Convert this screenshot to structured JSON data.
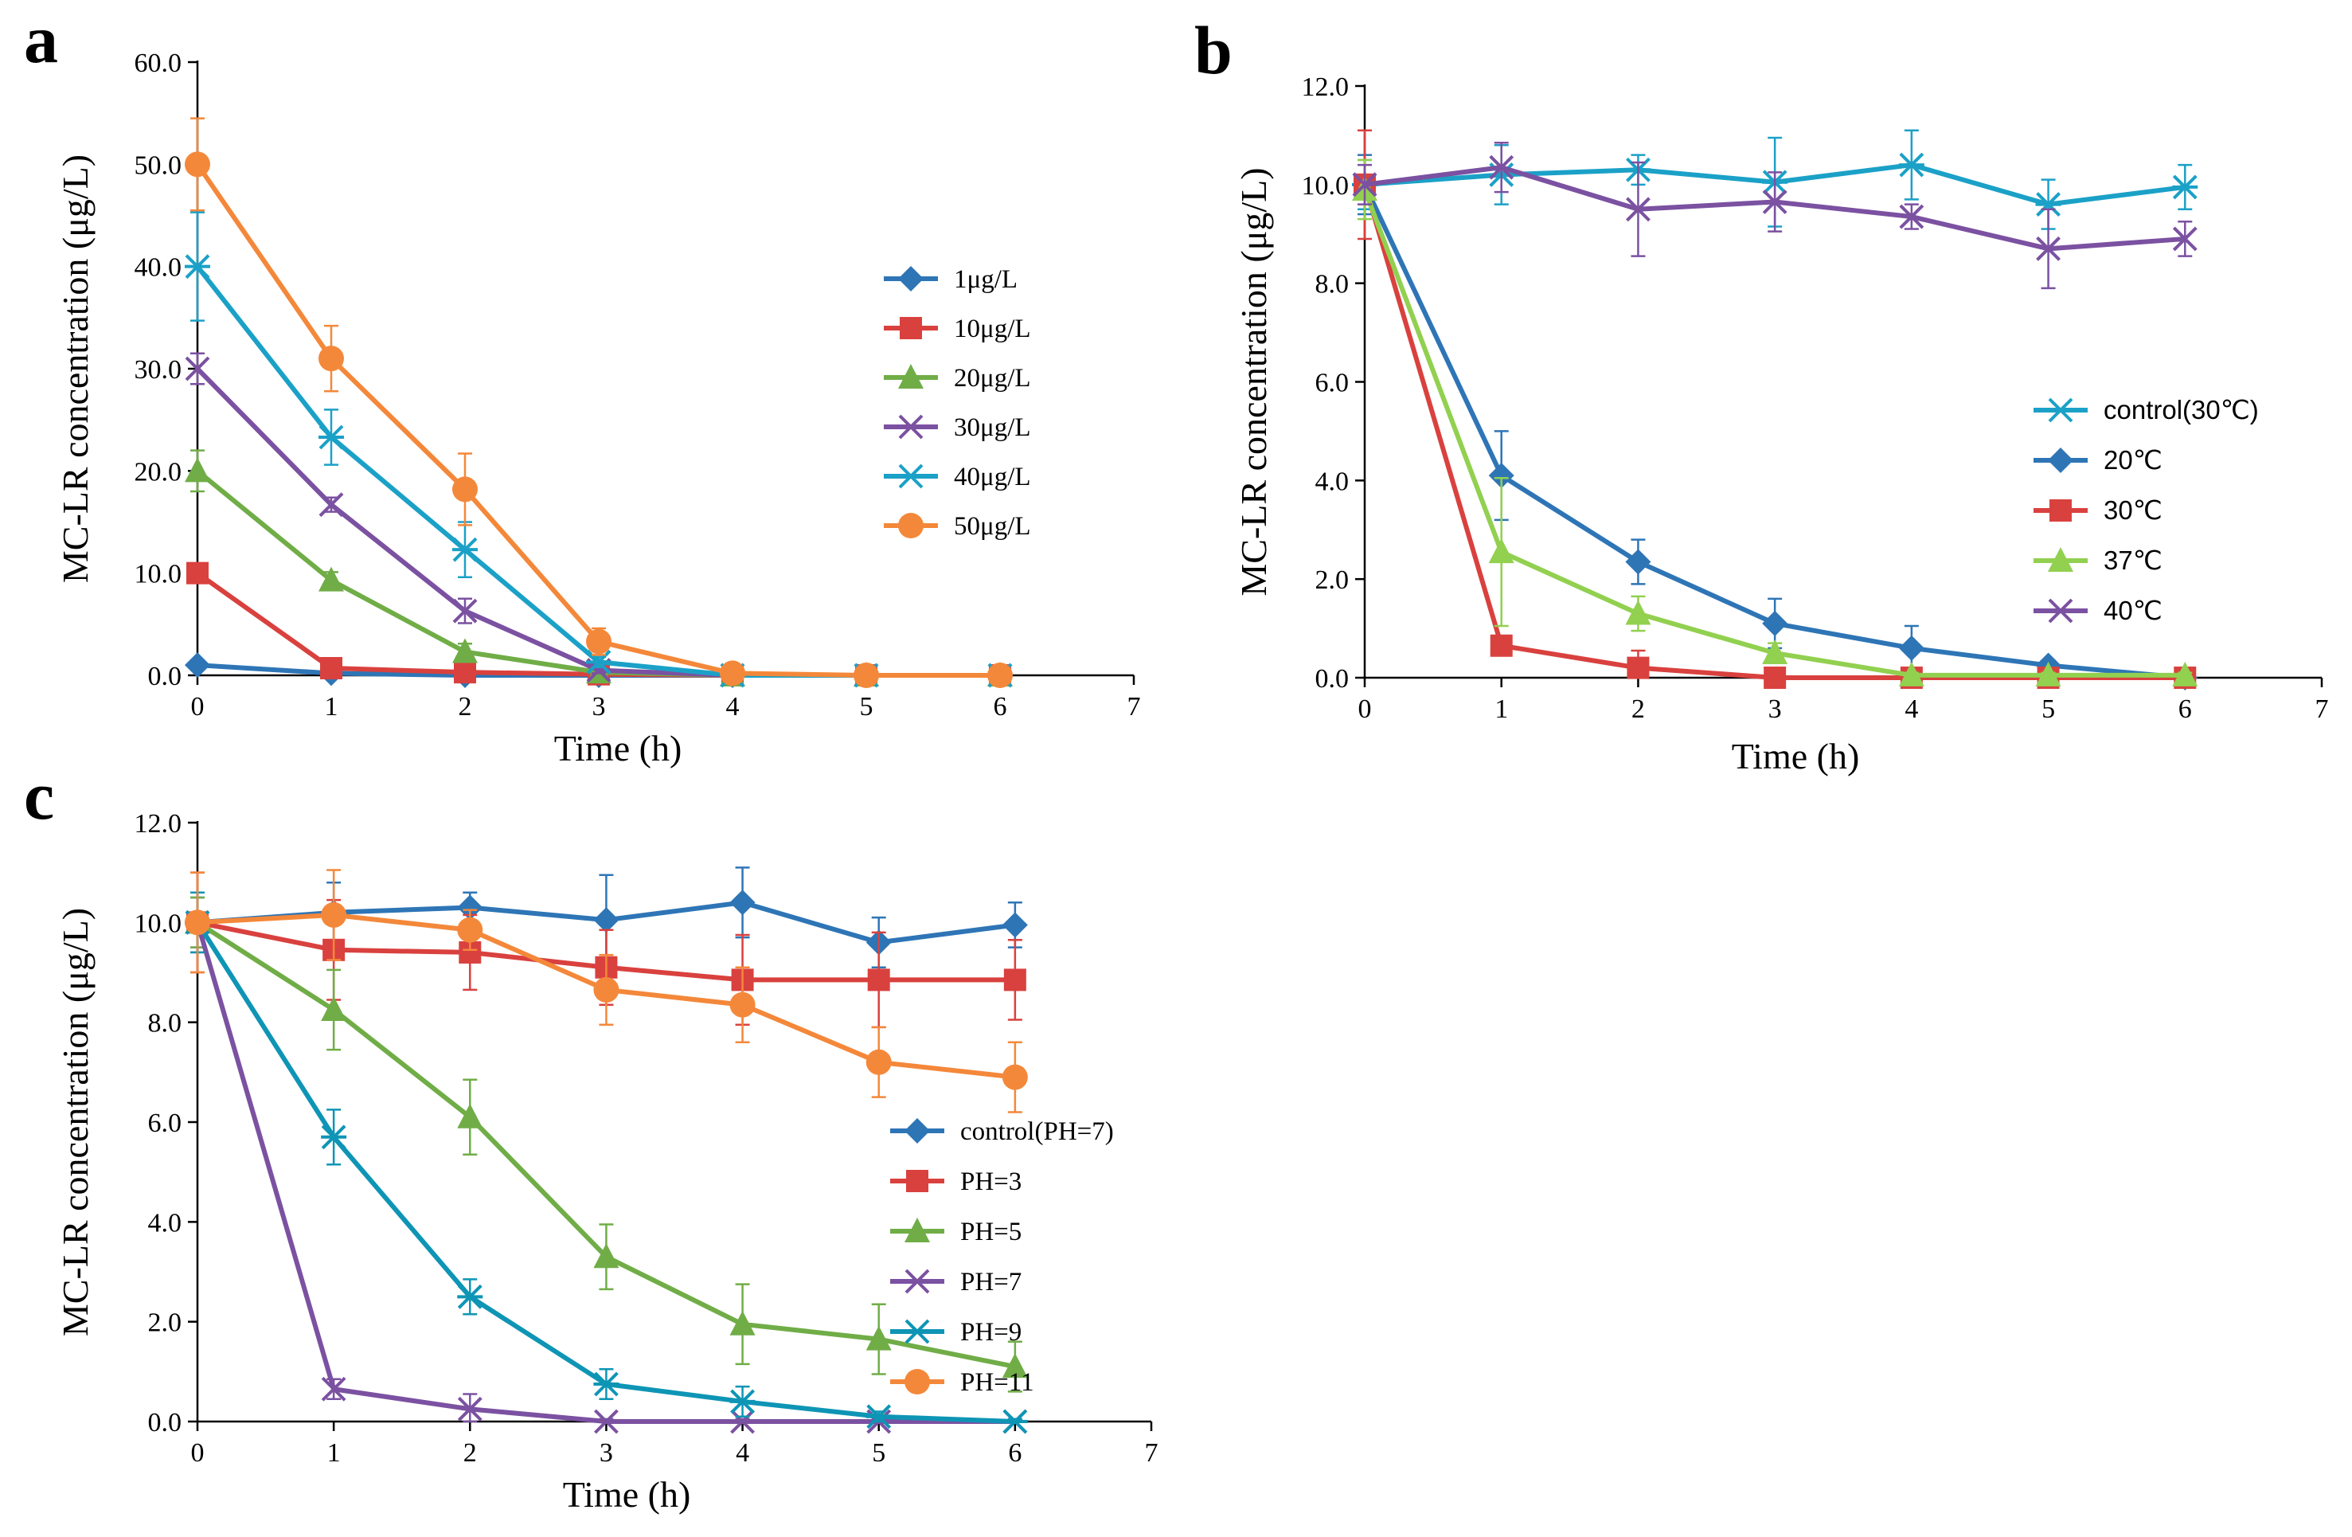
{
  "figure": {
    "panel_labels": [
      "a",
      "b",
      "c"
    ]
  },
  "colors": {
    "blue": "#2E75B6",
    "red": "#D9413E",
    "olive_green": "#70AD47",
    "light_green": "#92D050",
    "purple": "#7B51A1",
    "teal": "#1BA1C7",
    "dark_teal": "#0E95B5",
    "orange": "#F4883A"
  },
  "chart_data": [
    {
      "panel": "a",
      "type": "line",
      "xlabel": "Time (h)",
      "ylabel": "MC-LR concentration (μg/L)",
      "xlim": [
        0,
        7
      ],
      "ylim": [
        0,
        60
      ],
      "xticks": [
        "0",
        "1",
        "2",
        "3",
        "4",
        "5",
        "6",
        "7"
      ],
      "yticks": [
        "0.0",
        "10.0",
        "20.0",
        "30.0",
        "40.0",
        "50.0",
        "60.0"
      ],
      "x": [
        0,
        1,
        2,
        3,
        4,
        5,
        6
      ],
      "legend_position": "right-middle",
      "series": [
        {
          "name": "1μg/L",
          "color": "#2E75B6",
          "marker": "diamond",
          "values": [
            1.0,
            0.2,
            0.0,
            0.0,
            0.0,
            0.0,
            0.0
          ],
          "errors": [
            0.3,
            0.2,
            0.1,
            0.1,
            0.1,
            0.1,
            0.1
          ]
        },
        {
          "name": "10μg/L",
          "color": "#D9413E",
          "marker": "square",
          "values": [
            10.0,
            0.7,
            0.3,
            0.1,
            0.0,
            0.0,
            0.0
          ],
          "errors": [
            0.5,
            0.3,
            0.2,
            0.1,
            0.1,
            0.1,
            0.1
          ]
        },
        {
          "name": "20μg/L",
          "color": "#70AD47",
          "marker": "triangle",
          "values": [
            20.0,
            9.3,
            2.3,
            0.3,
            0.0,
            0.0,
            0.0
          ],
          "errors": [
            2.0,
            0.8,
            0.8,
            0.2,
            0.1,
            0.1,
            0.1
          ]
        },
        {
          "name": "30μg/L",
          "color": "#7B51A1",
          "marker": "x",
          "values": [
            30.0,
            16.7,
            6.3,
            0.5,
            0.0,
            0.0,
            0.0
          ],
          "errors": [
            1.5,
            0.7,
            1.2,
            0.3,
            0.1,
            0.1,
            0.1
          ]
        },
        {
          "name": "40μg/L",
          "color": "#1BA1C7",
          "marker": "asterisk",
          "values": [
            40.0,
            23.3,
            12.3,
            1.3,
            0.0,
            0.0,
            0.0
          ],
          "errors": [
            5.3,
            2.7,
            2.7,
            0.5,
            0.1,
            0.1,
            0.1
          ]
        },
        {
          "name": "50μg/L",
          "color": "#F4883A",
          "marker": "circle",
          "values": [
            50.0,
            31.0,
            18.2,
            3.3,
            0.2,
            0.0,
            0.0
          ],
          "errors": [
            4.5,
            3.2,
            3.5,
            1.3,
            0.2,
            0.1,
            0.1
          ]
        }
      ]
    },
    {
      "panel": "b",
      "type": "line",
      "xlabel": "Time (h)",
      "ylabel": "MC-LR concentration (μg/L)",
      "xlim": [
        0,
        7
      ],
      "ylim": [
        0,
        12
      ],
      "xticks": [
        "0",
        "1",
        "2",
        "3",
        "4",
        "5",
        "6",
        "7"
      ],
      "yticks": [
        "0.0",
        "2.0",
        "4.0",
        "6.0",
        "8.0",
        "10.0",
        "12.0"
      ],
      "x": [
        0,
        1,
        2,
        3,
        4,
        5,
        6
      ],
      "legend_position": "right-middle",
      "series": [
        {
          "name": "control(30℃)",
          "color": "#1BA1C7",
          "marker": "asterisk",
          "values": [
            10.0,
            10.2,
            10.3,
            10.05,
            10.4,
            9.6,
            9.95
          ],
          "errors": [
            0.5,
            0.6,
            0.3,
            0.9,
            0.7,
            0.5,
            0.45
          ]
        },
        {
          "name": "20℃",
          "color": "#2E75B6",
          "marker": "diamond",
          "values": [
            10.0,
            4.1,
            2.35,
            1.1,
            0.6,
            0.25,
            0.0
          ],
          "errors": [
            0.6,
            0.9,
            0.45,
            0.5,
            0.45,
            0.1,
            0.05
          ]
        },
        {
          "name": "30℃",
          "color": "#D9413E",
          "marker": "square",
          "values": [
            10.0,
            0.65,
            0.2,
            0.0,
            0.0,
            0.0,
            0.0
          ],
          "errors": [
            1.1,
            0.15,
            0.35,
            0.05,
            0.05,
            0.05,
            0.05
          ]
        },
        {
          "name": "37℃",
          "color": "#92D050",
          "marker": "triangle",
          "values": [
            9.9,
            2.55,
            1.3,
            0.5,
            0.05,
            0.05,
            0.05
          ],
          "errors": [
            0.6,
            1.5,
            0.35,
            0.2,
            0.05,
            0.05,
            0.05
          ]
        },
        {
          "name": "40℃",
          "color": "#7B51A1",
          "marker": "x",
          "values": [
            10.0,
            10.35,
            9.5,
            9.65,
            9.35,
            8.7,
            8.9
          ],
          "errors": [
            0.4,
            0.5,
            0.95,
            0.6,
            0.25,
            0.8,
            0.35
          ]
        }
      ]
    },
    {
      "panel": "c",
      "type": "line",
      "xlabel": "Time (h)",
      "ylabel": "MC-LR concentration (μg/L)",
      "xlim": [
        0,
        7
      ],
      "ylim": [
        0,
        12
      ],
      "xticks": [
        "0",
        "1",
        "2",
        "3",
        "4",
        "5",
        "6",
        "7"
      ],
      "yticks": [
        "0.0",
        "2.0",
        "4.0",
        "6.0",
        "8.0",
        "10.0",
        "12.0"
      ],
      "x": [
        0,
        1,
        2,
        3,
        4,
        5,
        6
      ],
      "legend_position": "center-right",
      "series": [
        {
          "name": "control(PH=7)",
          "color": "#2E75B6",
          "marker": "diamond",
          "values": [
            10.0,
            10.2,
            10.3,
            10.05,
            10.4,
            9.6,
            9.95
          ],
          "errors": [
            0.5,
            0.6,
            0.3,
            0.9,
            0.7,
            0.5,
            0.45
          ]
        },
        {
          "name": "PH=3",
          "color": "#D9413E",
          "marker": "square",
          "values": [
            10.0,
            9.45,
            9.4,
            9.1,
            8.85,
            8.85,
            8.85
          ],
          "errors": [
            1.0,
            1.0,
            0.75,
            0.75,
            0.9,
            0.95,
            0.8
          ]
        },
        {
          "name": "PH=5",
          "color": "#70AD47",
          "marker": "triangle",
          "values": [
            10.0,
            8.25,
            6.1,
            3.3,
            1.95,
            1.65,
            1.1
          ],
          "errors": [
            0.5,
            0.8,
            0.75,
            0.65,
            0.8,
            0.7,
            0.5
          ]
        },
        {
          "name": "PH=7",
          "color": "#7B51A1",
          "marker": "x",
          "values": [
            10.0,
            0.65,
            0.25,
            0.0,
            0.0,
            0.0,
            0.0
          ],
          "errors": [
            0.6,
            0.2,
            0.3,
            0.05,
            0.05,
            0.05,
            0.05
          ]
        },
        {
          "name": "PH=9",
          "color": "#0E95B5",
          "marker": "asterisk",
          "values": [
            10.0,
            5.7,
            2.5,
            0.75,
            0.4,
            0.1,
            0.0
          ],
          "errors": [
            0.6,
            0.55,
            0.35,
            0.3,
            0.3,
            0.1,
            0.05
          ]
        },
        {
          "name": "PH=11",
          "color": "#F4883A",
          "marker": "circle",
          "values": [
            10.0,
            10.15,
            9.85,
            8.65,
            8.35,
            7.2,
            6.9
          ],
          "errors": [
            1.0,
            0.9,
            0.4,
            0.7,
            0.75,
            0.7,
            0.7
          ]
        }
      ]
    }
  ]
}
